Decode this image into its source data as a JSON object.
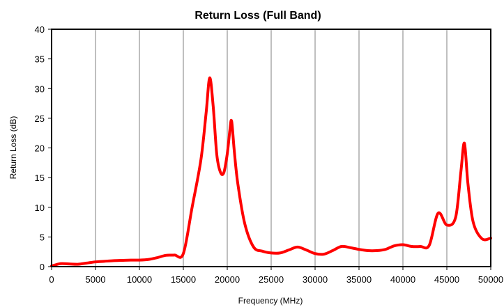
{
  "chart_data": {
    "type": "line",
    "title": "Return Loss (Full Band)",
    "xlabel": "Frequency (MHz)",
    "ylabel": "Return Loss (dB)",
    "xlim": [
      0,
      50000
    ],
    "ylim": [
      0,
      40
    ],
    "x_ticks": [
      0,
      5000,
      10000,
      15000,
      20000,
      25000,
      30000,
      35000,
      40000,
      45000,
      50000
    ],
    "y_ticks": [
      0,
      5,
      10,
      15,
      20,
      25,
      30,
      35,
      40
    ],
    "grid": "vertical",
    "legend": "none",
    "colors": {
      "line": "#ff0000",
      "grid": "#bfbfbf",
      "axis": "#000000"
    },
    "series": [
      {
        "x": [
          0,
          1000,
          2000,
          3000,
          4000,
          5000,
          6000,
          7000,
          8000,
          9000,
          10000,
          11000,
          12000,
          13000,
          14000,
          15000,
          16000,
          17000,
          17600,
          18000,
          18400,
          18800,
          19200,
          19600,
          20000,
          20300,
          20500,
          20800,
          21200,
          22000,
          23000,
          24000,
          25000,
          26000,
          27000,
          28000,
          29000,
          30000,
          31000,
          32000,
          33000,
          34000,
          35000,
          36000,
          37000,
          38000,
          39000,
          40000,
          41000,
          42000,
          43000,
          44000,
          45000,
          46000,
          46600,
          47000,
          47400,
          48000,
          49000,
          50000
        ],
        "values": [
          0.1,
          0.5,
          0.45,
          0.4,
          0.6,
          0.8,
          0.9,
          1.0,
          1.05,
          1.1,
          1.1,
          1.2,
          1.5,
          1.9,
          1.95,
          2.2,
          10.0,
          18.0,
          26.0,
          31.8,
          27.0,
          19.0,
          16.0,
          15.8,
          19.0,
          23.0,
          24.5,
          19.5,
          14.0,
          7.2,
          3.3,
          2.6,
          2.3,
          2.3,
          2.8,
          3.3,
          2.8,
          2.2,
          2.1,
          2.7,
          3.4,
          3.2,
          2.9,
          2.7,
          2.7,
          2.9,
          3.5,
          3.7,
          3.4,
          3.4,
          3.6,
          9.0,
          7.0,
          8.3,
          16.0,
          20.8,
          14.0,
          7.5,
          4.7,
          4.8
        ]
      }
    ]
  }
}
